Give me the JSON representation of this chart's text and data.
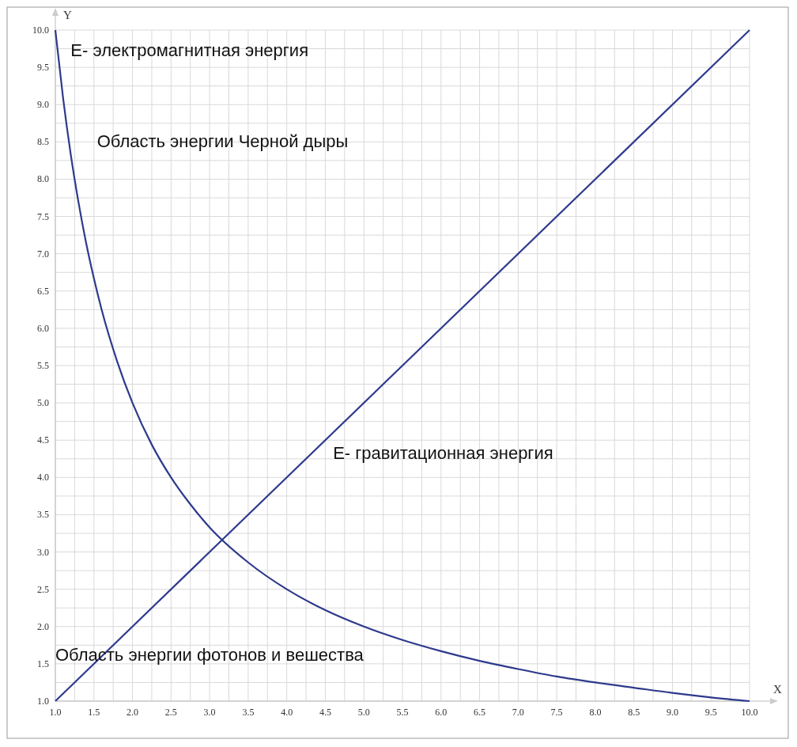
{
  "chart_data": {
    "type": "line",
    "xlabel": "X",
    "ylabel": "Y",
    "xlim": [
      1,
      10
    ],
    "ylim": [
      1,
      10
    ],
    "xticks": [
      {
        "value": 1,
        "label": "1.0"
      },
      {
        "value": 1.25,
        "label": null
      },
      {
        "value": 1.5,
        "label": "1.5"
      },
      {
        "value": 1.75,
        "label": null
      },
      {
        "value": 2,
        "label": "2.0"
      },
      {
        "value": 2.25,
        "label": null
      },
      {
        "value": 2.5,
        "label": "2.5"
      },
      {
        "value": 2.75,
        "label": null
      },
      {
        "value": 3,
        "label": "3.0"
      },
      {
        "value": 3.25,
        "label": null
      },
      {
        "value": 3.5,
        "label": "3.5"
      },
      {
        "value": 3.75,
        "label": null
      },
      {
        "value": 4,
        "label": "4.0"
      },
      {
        "value": 4.25,
        "label": null
      },
      {
        "value": 4.5,
        "label": "4.5"
      },
      {
        "value": 4.75,
        "label": null
      },
      {
        "value": 5,
        "label": "5.0"
      },
      {
        "value": 5.25,
        "label": null
      },
      {
        "value": 5.5,
        "label": "5.5"
      },
      {
        "value": 5.75,
        "label": null
      },
      {
        "value": 6,
        "label": "6.0"
      },
      {
        "value": 6.25,
        "label": null
      },
      {
        "value": 6.5,
        "label": "6.5"
      },
      {
        "value": 6.75,
        "label": null
      },
      {
        "value": 7,
        "label": "7.0"
      },
      {
        "value": 7.25,
        "label": null
      },
      {
        "value": 7.5,
        "label": "7.5"
      },
      {
        "value": 7.75,
        "label": null
      },
      {
        "value": 8,
        "label": "8.0"
      },
      {
        "value": 8.25,
        "label": null
      },
      {
        "value": 8.5,
        "label": "8.5"
      },
      {
        "value": 8.75,
        "label": null
      },
      {
        "value": 9,
        "label": "9.0"
      },
      {
        "value": 9.25,
        "label": null
      },
      {
        "value": 9.5,
        "label": "9.5"
      },
      {
        "value": 9.75,
        "label": null
      },
      {
        "value": 10,
        "label": "10.0"
      }
    ],
    "yticks": [
      {
        "value": 1,
        "label": "1.0"
      },
      {
        "value": 1.25,
        "label": null
      },
      {
        "value": 1.5,
        "label": "1.5"
      },
      {
        "value": 1.75,
        "label": null
      },
      {
        "value": 2,
        "label": "2.0"
      },
      {
        "value": 2.25,
        "label": null
      },
      {
        "value": 2.5,
        "label": "2.5"
      },
      {
        "value": 2.75,
        "label": null
      },
      {
        "value": 3,
        "label": "3.0"
      },
      {
        "value": 3.25,
        "label": null
      },
      {
        "value": 3.5,
        "label": "3.5"
      },
      {
        "value": 3.75,
        "label": null
      },
      {
        "value": 4,
        "label": "4.0"
      },
      {
        "value": 4.25,
        "label": null
      },
      {
        "value": 4.5,
        "label": "4.5"
      },
      {
        "value": 4.75,
        "label": null
      },
      {
        "value": 5,
        "label": "5.0"
      },
      {
        "value": 5.25,
        "label": null
      },
      {
        "value": 5.5,
        "label": "5.5"
      },
      {
        "value": 5.75,
        "label": null
      },
      {
        "value": 6,
        "label": "6.0"
      },
      {
        "value": 6.25,
        "label": null
      },
      {
        "value": 6.5,
        "label": "6.5"
      },
      {
        "value": 6.75,
        "label": null
      },
      {
        "value": 7,
        "label": "7.0"
      },
      {
        "value": 7.25,
        "label": null
      },
      {
        "value": 7.5,
        "label": "7.5"
      },
      {
        "value": 7.75,
        "label": null
      },
      {
        "value": 8,
        "label": "8.0"
      },
      {
        "value": 8.25,
        "label": null
      },
      {
        "value": 8.5,
        "label": "8.5"
      },
      {
        "value": 8.75,
        "label": null
      },
      {
        "value": 9,
        "label": "9.0"
      },
      {
        "value": 9.25,
        "label": null
      },
      {
        "value": 9.5,
        "label": "9.5"
      },
      {
        "value": 9.75,
        "label": null
      },
      {
        "value": 10,
        "label": "10.0"
      }
    ],
    "grid": true,
    "marker": "none",
    "line_style": "solid",
    "series": [
      {
        "color": "#2e3a8c",
        "x": [
          1,
          1.1,
          1.2,
          1.3,
          1.4,
          1.5,
          1.6,
          1.8,
          2,
          2.25,
          2.5,
          2.75,
          3,
          3.5,
          4,
          4.5,
          5,
          5.5,
          6,
          6.5,
          7,
          7.5,
          8,
          8.5,
          9,
          9.5,
          10
        ],
        "values": [
          10,
          9.09,
          8.33,
          7.69,
          7.14,
          6.67,
          6.25,
          5.56,
          5,
          4.44,
          4,
          3.64,
          3.33,
          2.86,
          2.5,
          2.22,
          2,
          1.82,
          1.67,
          1.54,
          1.43,
          1.33,
          1.25,
          1.18,
          1.11,
          1.05,
          1
        ]
      },
      {
        "color": "#2e3a8c",
        "x": [
          1,
          10
        ],
        "values": [
          1,
          10
        ]
      }
    ],
    "annotations": [
      "E- электромагнитная энергия",
      "Область энергии Черной дыры",
      "E- гравитационная энергия",
      "Область энергии фотонов и вешества"
    ]
  }
}
